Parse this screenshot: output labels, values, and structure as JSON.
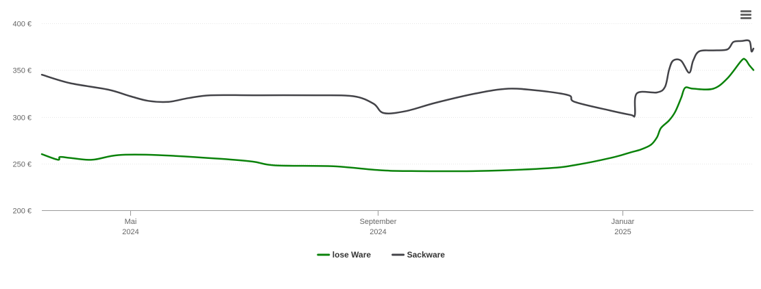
{
  "chart_data": {
    "type": "line",
    "title": "",
    "xlabel": "",
    "ylabel": "",
    "ylim": [
      200,
      400
    ],
    "y_ticks": [
      {
        "value": 200,
        "label": "200 €"
      },
      {
        "value": 250,
        "label": "250 €"
      },
      {
        "value": 300,
        "label": "300 €"
      },
      {
        "value": 350,
        "label": "350 €"
      },
      {
        "value": 400,
        "label": "400 €"
      }
    ],
    "xlim": [
      "2024-03-18",
      "2025-03-07"
    ],
    "x_ticks": [
      {
        "date": "2024-05-01",
        "line1": "Mai",
        "line2": "2024"
      },
      {
        "date": "2024-09-01",
        "line1": "September",
        "line2": "2024"
      },
      {
        "date": "2025-01-01",
        "line1": "Januar",
        "line2": "2025"
      }
    ],
    "grid": true,
    "legend_position": "bottom-center",
    "series": [
      {
        "name": "lose Ware",
        "color": "#0a820a",
        "points": [
          [
            "2024-03-18",
            260
          ],
          [
            "2024-03-26",
            254
          ],
          [
            "2024-03-27",
            257
          ],
          [
            "2024-04-01",
            256
          ],
          [
            "2024-04-12",
            254
          ],
          [
            "2024-04-25",
            259
          ],
          [
            "2024-05-15",
            259
          ],
          [
            "2024-06-15",
            255
          ],
          [
            "2024-07-01",
            252
          ],
          [
            "2024-07-12",
            248
          ],
          [
            "2024-08-10",
            247
          ],
          [
            "2024-09-01",
            243
          ],
          [
            "2024-09-15",
            242
          ],
          [
            "2024-10-20",
            242
          ],
          [
            "2024-11-25",
            245
          ],
          [
            "2024-12-10",
            249
          ],
          [
            "2024-12-28",
            257
          ],
          [
            "2025-01-05",
            262
          ],
          [
            "2025-01-10",
            265
          ],
          [
            "2025-01-15",
            270
          ],
          [
            "2025-01-18",
            278
          ],
          [
            "2025-01-20",
            288
          ],
          [
            "2025-01-24",
            296
          ],
          [
            "2025-01-27",
            305
          ],
          [
            "2025-01-30",
            320
          ],
          [
            "2025-02-01",
            331
          ],
          [
            "2025-02-05",
            330
          ],
          [
            "2025-02-15",
            330
          ],
          [
            "2025-02-22",
            341
          ],
          [
            "2025-03-01",
            360
          ],
          [
            "2025-03-03",
            361
          ],
          [
            "2025-03-05",
            355
          ],
          [
            "2025-03-07",
            350
          ]
        ]
      },
      {
        "name": "Sackware",
        "color": "#434348",
        "points": [
          [
            "2024-03-18",
            345
          ],
          [
            "2024-04-01",
            336
          ],
          [
            "2024-04-20",
            329
          ],
          [
            "2024-05-01",
            322
          ],
          [
            "2024-05-10",
            317
          ],
          [
            "2024-05-20",
            316
          ],
          [
            "2024-05-30",
            320
          ],
          [
            "2024-06-10",
            323
          ],
          [
            "2024-07-01",
            323
          ],
          [
            "2024-08-01",
            323
          ],
          [
            "2024-08-20",
            322
          ],
          [
            "2024-08-30",
            314
          ],
          [
            "2024-09-04",
            304
          ],
          [
            "2024-09-15",
            306
          ],
          [
            "2024-09-30",
            315
          ],
          [
            "2024-10-20",
            325
          ],
          [
            "2024-11-05",
            330
          ],
          [
            "2024-11-20",
            328
          ],
          [
            "2024-12-05",
            323
          ],
          [
            "2024-12-08",
            316
          ],
          [
            "2024-12-25",
            307
          ],
          [
            "2025-01-05",
            302
          ],
          [
            "2025-01-07",
            302
          ],
          [
            "2025-01-08",
            325
          ],
          [
            "2025-01-18",
            326
          ],
          [
            "2025-01-22",
            332
          ],
          [
            "2025-01-24",
            350
          ],
          [
            "2025-01-26",
            360
          ],
          [
            "2025-01-30",
            360
          ],
          [
            "2025-02-03",
            347
          ],
          [
            "2025-02-05",
            360
          ],
          [
            "2025-02-08",
            370
          ],
          [
            "2025-02-15",
            371
          ],
          [
            "2025-02-22",
            372
          ],
          [
            "2025-02-25",
            380
          ],
          [
            "2025-03-01",
            381
          ],
          [
            "2025-03-05",
            381
          ],
          [
            "2025-03-06",
            370
          ],
          [
            "2025-03-07",
            373
          ]
        ]
      }
    ]
  },
  "menu": {
    "icon": "hamburger-menu-icon"
  }
}
